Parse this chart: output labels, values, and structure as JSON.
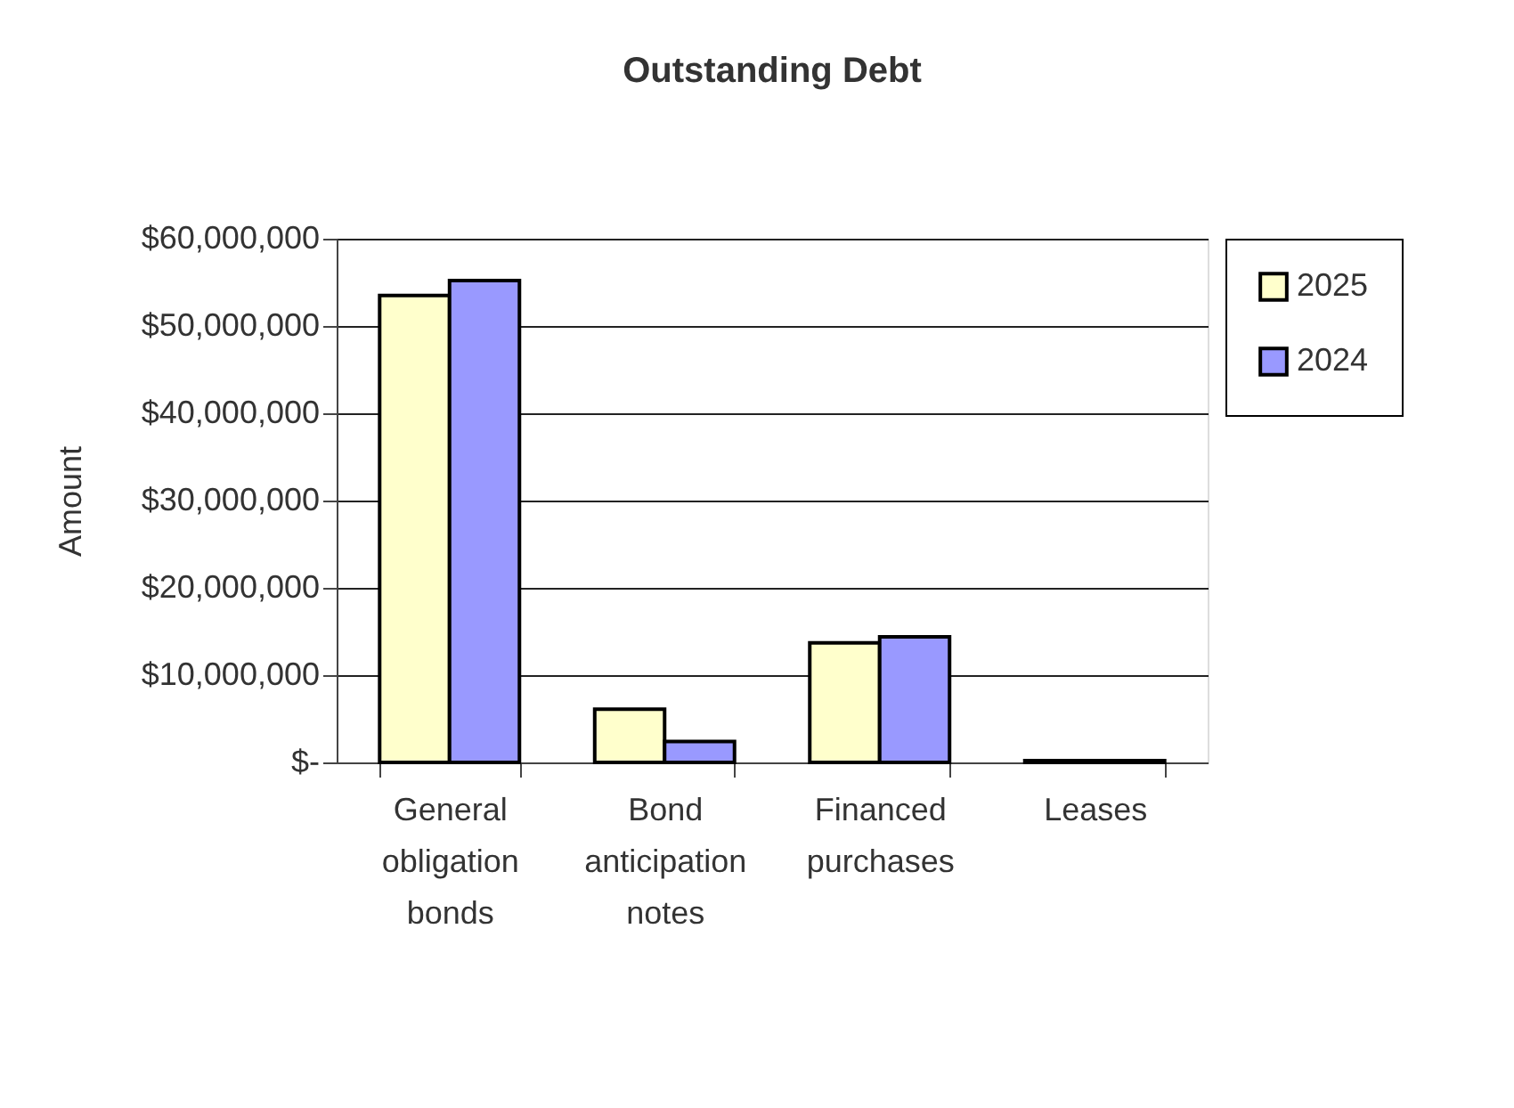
{
  "chart_data": {
    "type": "bar",
    "title": "Outstanding Debt",
    "ylabel": "Amount",
    "categories": [
      "General obligation bonds",
      "Bond anticipation notes",
      "Financed purchases",
      "Leases"
    ],
    "series": [
      {
        "name": "2025",
        "color": "#ffffcc",
        "values": [
          53500000,
          6100000,
          13700000,
          200000
        ]
      },
      {
        "name": "2024",
        "color": "#9999ff",
        "values": [
          55200000,
          2400000,
          14400000,
          200000
        ]
      }
    ],
    "ylim": [
      0,
      60000000
    ],
    "yticks": [
      {
        "value": 0,
        "label": "$-"
      },
      {
        "value": 10000000,
        "label": "$10,000,000"
      },
      {
        "value": 20000000,
        "label": "$20,000,000"
      },
      {
        "value": 30000000,
        "label": "$30,000,000"
      },
      {
        "value": 40000000,
        "label": "$40,000,000"
      },
      {
        "value": 50000000,
        "label": "$50,000,000"
      },
      {
        "value": 60000000,
        "label": "$60,000,000"
      }
    ],
    "grid": "y",
    "legend": "right"
  }
}
